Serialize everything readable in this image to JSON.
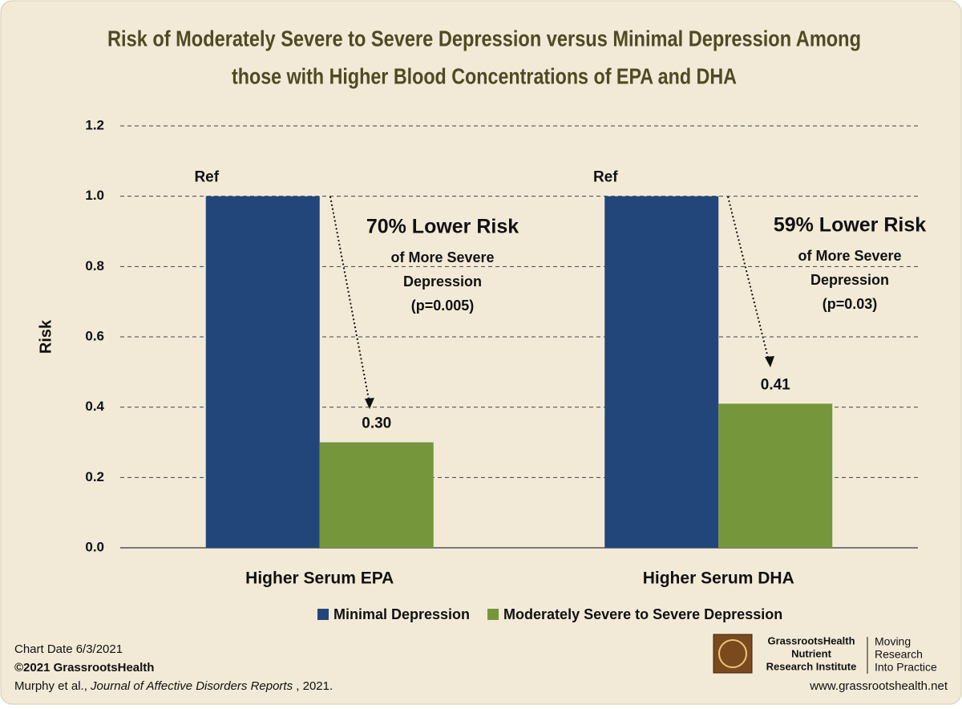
{
  "chart_data": {
    "type": "bar",
    "title": [
      "Risk of Moderately Severe to Severe Depression versus Minimal Depression Among",
      "those with Higher Blood Concentrations of EPA and DHA"
    ],
    "y_label": "Risk",
    "categories": [
      "Higher Serum EPA",
      "Higher Serum DHA"
    ],
    "series": [
      {
        "name": "Minimal Depression",
        "color": "#23467a",
        "values": [
          1.0,
          1.0
        ],
        "value_labels": [
          "Ref",
          "Ref"
        ]
      },
      {
        "name": "Moderately Severe to Severe Depression",
        "color": "#76963c",
        "values": [
          0.3,
          0.41
        ],
        "value_labels": [
          "0.30",
          "0.41"
        ]
      }
    ],
    "ylim": [
      0,
      1.2
    ],
    "yticks": [
      {
        "value": 0,
        "label": "0.0"
      },
      0.2,
      0.4,
      0.6,
      0.8,
      {
        "value": 1,
        "label": "1.0"
      },
      1.2
    ],
    "grid": true,
    "legend": "bottom",
    "annotations": [
      {
        "lines": [
          "70% Lower Risk",
          "of More Severe",
          "Depression",
          "(p=0.005)"
        ]
      },
      {
        "lines": [
          "59% Lower Risk",
          "of More Severe",
          "Depression",
          "(p=0.03)"
        ]
      }
    ]
  },
  "footer": {
    "chart_date": "Chart Date 6/3/2021",
    "copyright": "©2021 GrassrootsHealth",
    "citation": [
      "Murphy et al., ",
      "Journal of Affective Disorders Reports",
      " , 2021."
    ],
    "logo": [
      "GrassrootsHealth",
      "Nutrient",
      "Research Institute"
    ],
    "tagline": [
      "Moving",
      "Research",
      "Into Practice"
    ],
    "url": "www.grassrootshealth.net"
  }
}
